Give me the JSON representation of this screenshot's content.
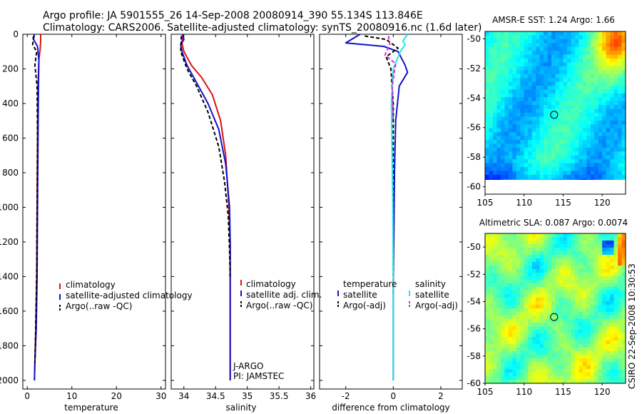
{
  "header": {
    "line1": "Argo profile: JA 5901555_26 14-Sep-2008 20080914_390 55.134S 113.846E",
    "line2": "Climatology: CARS2006. Satellite-adjusted climatology: synTS_20080916.nc (1.6d later)"
  },
  "credit": "CSIRO 22-Sep-2008 10:30:53",
  "colors": {
    "red": "#dd1111",
    "blue": "#1111cc",
    "black": "#000000",
    "cyan": "#22e8e8",
    "magenta": "#e020e0"
  },
  "chart_data": [
    {
      "type": "line",
      "name": "temperature",
      "xlabel": "temperature",
      "ylabel": "",
      "xlim": [
        -1,
        31
      ],
      "ylim": [
        2050,
        0
      ],
      "xticks": [
        "0",
        "10",
        "20",
        "30"
      ],
      "xtick_values": [
        0,
        10,
        20,
        30
      ],
      "yticks": [
        "0",
        "200",
        "400",
        "600",
        "800",
        "1000",
        "1200",
        "1400",
        "1600",
        "1800",
        "2000"
      ],
      "ytick_values": [
        0,
        200,
        400,
        600,
        800,
        1000,
        1200,
        1400,
        1600,
        1800,
        2000
      ],
      "legend": [
        {
          "label": "climatology",
          "color": "red",
          "dashed": false
        },
        {
          "label": "satellite-adjusted climatology",
          "color": "blue",
          "dashed": false
        },
        {
          "label": "Argo(..raw -QC)",
          "color": "black",
          "dashed": true
        }
      ],
      "series": [
        {
          "name": "climatology",
          "color": "red",
          "dashed": false,
          "x": [
            3.0,
            3.0,
            2.9,
            2.6,
            2.4,
            2.3,
            2.2,
            2.1,
            1.9,
            1.7,
            1.6
          ],
          "y": [
            0,
            40,
            80,
            150,
            300,
            600,
            1000,
            1400,
            1700,
            1900,
            2000
          ]
        },
        {
          "name": "satellite-adjusted climatology",
          "color": "blue",
          "dashed": false,
          "x": [
            1.6,
            1.4,
            2.3,
            2.6,
            2.5,
            2.4,
            2.3,
            2.2,
            2.0,
            1.7,
            1.6
          ],
          "y": [
            0,
            30,
            70,
            150,
            300,
            600,
            1000,
            1400,
            1700,
            1900,
            2000
          ]
        },
        {
          "name": "Argo(..raw -QC)",
          "color": "black",
          "dashed": true,
          "x": [
            1.4,
            1.2,
            2.1,
            1.7,
            2.2,
            2.3,
            2.2,
            2.1,
            1.9,
            1.7
          ],
          "y": [
            10,
            60,
            100,
            180,
            300,
            600,
            1000,
            1400,
            1700,
            1900
          ]
        }
      ]
    },
    {
      "type": "line",
      "name": "salinity",
      "xlabel": "salinity",
      "ylabel": "",
      "xlim": [
        33.8,
        36.05
      ],
      "ylim": [
        2050,
        0
      ],
      "xticks": [
        "34",
        "34.5",
        "35",
        "35.5",
        "36"
      ],
      "xtick_values": [
        34,
        34.5,
        35,
        35.5,
        36
      ],
      "legend": [
        {
          "label": "climatology",
          "color": "red",
          "dashed": false
        },
        {
          "label": "satellite adj. clim.",
          "color": "blue",
          "dashed": false
        },
        {
          "label": "Argo(..raw -QC)",
          "color": "black",
          "dashed": true
        }
      ],
      "annotations": [
        "J-ARGO",
        "PI: JAMSTEC"
      ],
      "series": [
        {
          "name": "climatology",
          "color": "red",
          "dashed": false,
          "x": [
            33.98,
            33.97,
            34.0,
            34.12,
            34.28,
            34.45,
            34.58,
            34.66,
            34.71,
            34.73,
            34.73,
            34.73,
            34.73
          ],
          "y": [
            0,
            50,
            100,
            180,
            250,
            350,
            500,
            700,
            1000,
            1200,
            1500,
            1800,
            2000
          ]
        },
        {
          "name": "satellite adj. clim.",
          "color": "blue",
          "dashed": false,
          "x": [
            33.98,
            34.0,
            33.95,
            33.97,
            34.05,
            34.2,
            34.38,
            34.55,
            34.66,
            34.72,
            34.73,
            34.73,
            34.73,
            34.73
          ],
          "y": [
            0,
            30,
            60,
            100,
            180,
            280,
            400,
            550,
            750,
            1000,
            1200,
            1500,
            1800,
            2000
          ]
        },
        {
          "name": "Argo(..raw -QC)",
          "color": "black",
          "dashed": true,
          "x": [
            33.96,
            33.95,
            34.05,
            34.2,
            34.38,
            34.55,
            34.64,
            34.7,
            34.72,
            34.73
          ],
          "y": [
            10,
            100,
            200,
            300,
            450,
            650,
            850,
            1050,
            1250,
            1400
          ]
        }
      ]
    },
    {
      "type": "line",
      "name": "difference",
      "xlabel": "difference from climatology",
      "ylabel": "",
      "xlim": [
        -3.1,
        2.9
      ],
      "ylim": [
        2050,
        0
      ],
      "xticks": [
        "-2",
        "0",
        "2"
      ],
      "xtick_values": [
        -2,
        0,
        2
      ],
      "legend_left_title": "temperature",
      "legend_right_title": "salinity",
      "legend": [
        {
          "label": "satellite",
          "color": "blue",
          "dashed": false,
          "column": "left"
        },
        {
          "label": "Argo(-adj)",
          "color": "black",
          "dashed": true,
          "column": "left"
        },
        {
          "label": "satellite",
          "color": "cyan",
          "dashed": false,
          "column": "right"
        },
        {
          "label": "Argo(-adj)",
          "color": "magenta",
          "dashed": true,
          "column": "right"
        }
      ],
      "series": [
        {
          "name": "temperature satellite",
          "color": "blue",
          "dashed": false,
          "x": [
            -1.4,
            -2.0,
            -0.4,
            0.2,
            0.5,
            0.6,
            0.25,
            0.1,
            0.05,
            0.02,
            0.0,
            0.0,
            0.0
          ],
          "y": [
            0,
            50,
            70,
            100,
            180,
            220,
            300,
            500,
            800,
            1200,
            1500,
            1800,
            2000
          ]
        },
        {
          "name": "temperature Argo(-adj)",
          "color": "black",
          "dashed": true,
          "x": [
            -1.2,
            -0.3,
            0.2,
            -0.3,
            -0.1,
            0.0,
            0.0,
            0.0
          ],
          "y": [
            10,
            30,
            80,
            130,
            200,
            400,
            800,
            1500
          ]
        },
        {
          "name": "salinity satellite",
          "color": "cyan",
          "dashed": false,
          "x": [
            0.6,
            0.4,
            0.5,
            0.3,
            0.0,
            -0.08,
            -0.05,
            -0.02,
            0.0,
            0.0,
            0.0
          ],
          "y": [
            0,
            40,
            60,
            100,
            200,
            400,
            700,
            1000,
            1400,
            1800,
            2000
          ]
        },
        {
          "name": "salinity Argo(-adj)",
          "color": "magenta",
          "dashed": true,
          "x": [
            -0.2,
            -0.15,
            -0.35,
            0.1,
            -0.05,
            0.0
          ],
          "y": [
            10,
            60,
            120,
            170,
            300,
            500
          ]
        }
      ]
    },
    {
      "type": "heatmap",
      "name": "sst-map",
      "title": "AMSR-E SST: 1.24 Argo: 1.66",
      "xlim": [
        105,
        123
      ],
      "ylim": [
        -60.5,
        -49.5
      ],
      "xticks": [
        "105",
        "110",
        "115",
        "120"
      ],
      "xtick_values": [
        105,
        110,
        115,
        120
      ],
      "yticks": [
        "-50",
        "-52",
        "-54",
        "-56",
        "-58",
        "-60"
      ],
      "ytick_values": [
        -50,
        -52,
        -54,
        -56,
        -58,
        -60
      ],
      "marker": {
        "lon": 113.846,
        "lat": -55.134
      }
    },
    {
      "type": "heatmap",
      "name": "sla-map",
      "title": "Altimetric SLA: 0.087 Argo: 0.0074",
      "xlim": [
        105,
        123
      ],
      "ylim": [
        -60,
        -49
      ],
      "xticks": [
        "105",
        "110",
        "115",
        "120"
      ],
      "xtick_values": [
        105,
        110,
        115,
        120
      ],
      "yticks": [
        "-50",
        "-52",
        "-54",
        "-56",
        "-58",
        "-60"
      ],
      "ytick_values": [
        -50,
        -52,
        -54,
        -56,
        -58,
        -60
      ],
      "marker": {
        "lon": 113.846,
        "lat": -55.134
      }
    }
  ]
}
